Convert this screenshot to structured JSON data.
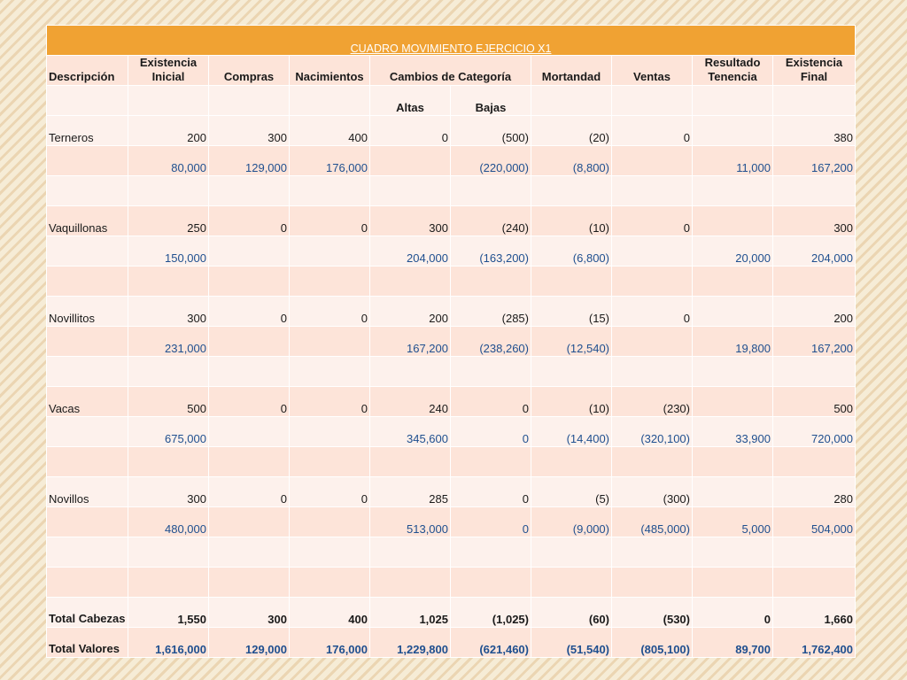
{
  "title": "CUADRO  MOVIMIENTO EJERCICIO X1",
  "headers": {
    "descripcion": "Descripción",
    "existencia_inicial": "Existencia Inicial",
    "compras": "Compras",
    "nacimientos": "Nacimientos",
    "cambios_categoria": "Cambios de Categoría",
    "mortandad": "Mortandad",
    "ventas": "Ventas",
    "resultado_tenencia": "Resultado Tenencia",
    "existencia_final": "Existencia Final",
    "altas": "Altas",
    "bajas": "Bajas"
  },
  "categories": [
    {
      "name": "Terneros",
      "heads": [
        "200",
        "300",
        "400",
        "0",
        "(500)",
        "(20)",
        "0",
        "",
        "380"
      ],
      "values": [
        "80,000",
        "129,000",
        "176,000",
        "",
        "(220,000)",
        "(8,800)",
        "",
        "11,000",
        "167,200"
      ]
    },
    {
      "name": "Vaquillonas",
      "heads": [
        "250",
        "0",
        "0",
        "300",
        "(240)",
        "(10)",
        "0",
        "",
        "300"
      ],
      "values": [
        "150,000",
        "",
        "",
        "204,000",
        "(163,200)",
        "(6,800)",
        "",
        "20,000",
        "204,000"
      ]
    },
    {
      "name": "Novillitos",
      "heads": [
        "300",
        "0",
        "0",
        "200",
        "(285)",
        "(15)",
        "0",
        "",
        "200"
      ],
      "values": [
        "231,000",
        "",
        "",
        "167,200",
        "(238,260)",
        "(12,540)",
        "",
        "19,800",
        "167,200"
      ]
    },
    {
      "name": "Vacas",
      "heads": [
        "500",
        "0",
        "0",
        "240",
        "0",
        "(10)",
        "(230)",
        "",
        "500"
      ],
      "values": [
        "675,000",
        "",
        "",
        "345,600",
        "0",
        "(14,400)",
        "(320,100)",
        "33,900",
        "720,000"
      ]
    },
    {
      "name": "Novillos",
      "heads": [
        "300",
        "0",
        "0",
        "285",
        "0",
        "(5)",
        "(300)",
        "",
        "280"
      ],
      "values": [
        "480,000",
        "",
        "",
        "513,000",
        "0",
        "(9,000)",
        "(485,000)",
        "5,000",
        "504,000"
      ]
    }
  ],
  "totals": {
    "cabezas_label": "Total Cabezas",
    "cabezas": [
      "1,550",
      "300",
      "400",
      "1,025",
      "(1,025)",
      "(60)",
      "(530)",
      "0",
      "1,660"
    ],
    "valores_label": "Total Valores",
    "valores": [
      "1,616,000",
      "129,000",
      "176,000",
      "1,229,800",
      "(621,460)",
      "(51,540)",
      "(805,100)",
      "89,700",
      "1,762,400"
    ]
  },
  "colors": {
    "title_bg": "#f0a233",
    "band_dark": "#fde4d9",
    "band_light": "#fdf1ec",
    "value_text": "#1f4f8f"
  }
}
